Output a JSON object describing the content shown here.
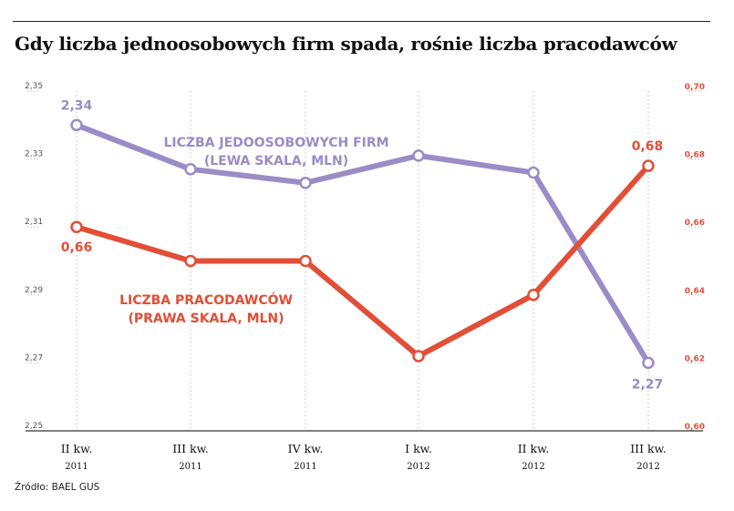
{
  "header": {
    "title": "Gdy liczba jednoosobowych firm spada, rośnie liczba pracodawców",
    "source": "Źródło: BAEL GUS"
  },
  "colors": {
    "left_series": "#9b8bc7",
    "right_series": "#e24e36",
    "grid": "#bdbdbd",
    "axis": "#333333"
  },
  "chart_data": {
    "type": "line",
    "categories": [
      {
        "quarter": "II kw.",
        "year": "2011"
      },
      {
        "quarter": "III kw.",
        "year": "2011"
      },
      {
        "quarter": "IV kw.",
        "year": "2011"
      },
      {
        "quarter": "I kw.",
        "year": "2012"
      },
      {
        "quarter": "II kw.",
        "year": "2012"
      },
      {
        "quarter": "III kw.",
        "year": "2012"
      }
    ],
    "y_left": {
      "ticks": [
        "2,25",
        "2,27",
        "2,29",
        "2,31",
        "2,33",
        "2,35"
      ],
      "range": [
        2.25,
        2.35
      ]
    },
    "y_right": {
      "ticks": [
        "0,60",
        "0,62",
        "0,64",
        "0,66",
        "0,68",
        "0,70"
      ],
      "range": [
        0.6,
        0.7
      ]
    },
    "series": [
      {
        "name_line1": "LICZBA JEDOOSOBOWYCH FIRM",
        "name_line2": "(LEWA SKALA, MLN)",
        "axis": "left",
        "values": [
          2.34,
          2.327,
          2.323,
          2.331,
          2.326,
          2.27
        ],
        "point_labels": [
          "2,34",
          "",
          "",
          "",
          "",
          "2,27"
        ]
      },
      {
        "name_line1": "LICZBA PRACODAWCÓW",
        "name_line2": "(PRAWA SKALA, MLN)",
        "axis": "right",
        "values": [
          0.66,
          0.65,
          0.65,
          0.622,
          0.64,
          0.678
        ],
        "point_labels": [
          "0,66",
          "",
          "",
          "",
          "",
          "0,68"
        ]
      }
    ],
    "grid": "vertical dotted at categories"
  }
}
